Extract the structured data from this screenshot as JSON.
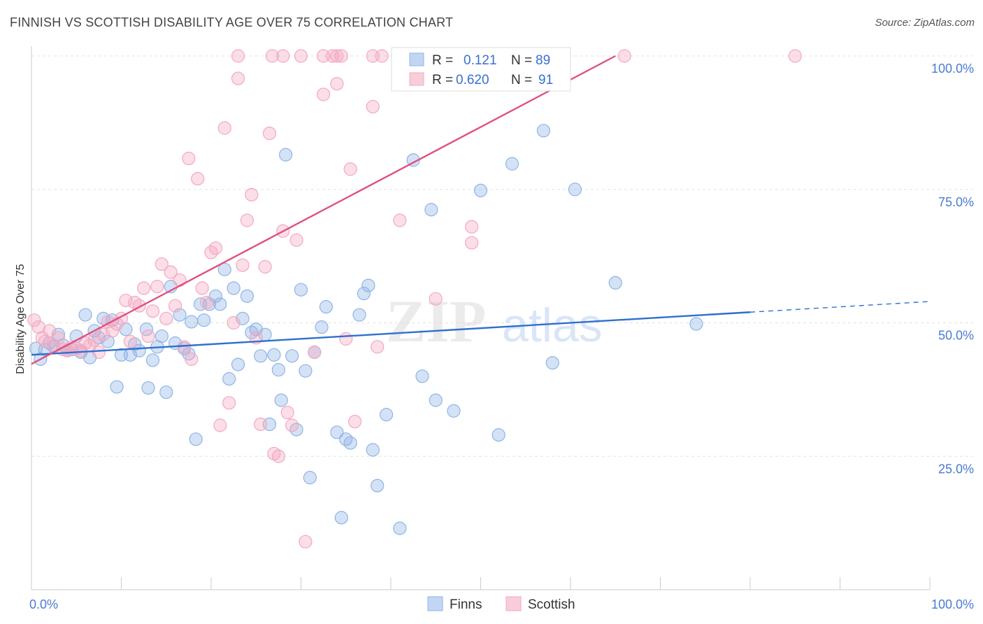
{
  "title": "FINNISH VS SCOTTISH DISABILITY AGE OVER 75 CORRELATION CHART",
  "source": "Source: ZipAtlas.com",
  "watermark": {
    "zip": "ZIP",
    "atlas": "atlas"
  },
  "chart_data": {
    "type": "scatter",
    "title": "FINNISH VS SCOTTISH DISABILITY AGE OVER 75 CORRELATION CHART",
    "xlabel": "",
    "ylabel": "Disability Age Over 75",
    "xlim": [
      0,
      100
    ],
    "ylim": [
      0,
      100
    ],
    "x_tick_labels": [
      "0.0%",
      "100.0%"
    ],
    "y_ticks": [
      25,
      50,
      75,
      100
    ],
    "y_tick_labels": [
      "25.0%",
      "50.0%",
      "75.0%",
      "100.0%"
    ],
    "grid": true,
    "legend_position": "top-center",
    "series": [
      {
        "name": "Finns",
        "color": "#8fb4e8",
        "line_color": "#2f6fcf",
        "R": "0.121",
        "N": "89",
        "trend": {
          "x0": 0,
          "y0": 44.0,
          "x1": 80,
          "y1": 52.0,
          "dash_to_x": 100,
          "dash_to_y": 54.0
        },
        "points": [
          [
            0.5,
            45.2
          ],
          [
            1.0,
            43.2
          ],
          [
            1.5,
            45.0
          ],
          [
            2.0,
            46.2
          ],
          [
            2.5,
            45.5
          ],
          [
            3.0,
            47.8
          ],
          [
            3.5,
            45.8
          ],
          [
            4.0,
            44.8
          ],
          [
            4.5,
            45.0
          ],
          [
            5.0,
            47.5
          ],
          [
            5.5,
            44.5
          ],
          [
            6.0,
            51.5
          ],
          [
            6.5,
            43.5
          ],
          [
            7.0,
            48.5
          ],
          [
            7.5,
            47.2
          ],
          [
            8.0,
            50.8
          ],
          [
            8.5,
            46.5
          ],
          [
            9.0,
            50.5
          ],
          [
            9.5,
            38.0
          ],
          [
            10.0,
            44.0
          ],
          [
            10.5,
            48.8
          ],
          [
            11.0,
            44.0
          ],
          [
            11.5,
            46.0
          ],
          [
            12.0,
            44.8
          ],
          [
            12.8,
            48.8
          ],
          [
            13.0,
            37.8
          ],
          [
            13.5,
            43.0
          ],
          [
            14.0,
            45.5
          ],
          [
            14.5,
            47.5
          ],
          [
            15.0,
            37.0
          ],
          [
            15.5,
            56.8
          ],
          [
            16.0,
            46.2
          ],
          [
            16.5,
            51.5
          ],
          [
            17.0,
            45.2
          ],
          [
            17.5,
            44.2
          ],
          [
            17.8,
            50.2
          ],
          [
            18.3,
            28.2
          ],
          [
            18.8,
            53.5
          ],
          [
            19.2,
            50.5
          ],
          [
            19.8,
            53.5
          ],
          [
            20.5,
            55.0
          ],
          [
            21.0,
            53.5
          ],
          [
            21.5,
            60.0
          ],
          [
            22.0,
            39.5
          ],
          [
            22.5,
            56.5
          ],
          [
            23.0,
            42.2
          ],
          [
            23.5,
            50.8
          ],
          [
            24.0,
            55.0
          ],
          [
            24.5,
            48.2
          ],
          [
            25.0,
            48.8
          ],
          [
            25.5,
            43.8
          ],
          [
            26.0,
            47.8
          ],
          [
            26.5,
            31.0
          ],
          [
            27.0,
            44.0
          ],
          [
            27.5,
            41.2
          ],
          [
            27.8,
            35.5
          ],
          [
            28.3,
            81.5
          ],
          [
            29.0,
            43.8
          ],
          [
            29.5,
            30.0
          ],
          [
            30.0,
            56.2
          ],
          [
            30.5,
            41.0
          ],
          [
            31.0,
            21.0
          ],
          [
            31.5,
            44.5
          ],
          [
            32.3,
            49.2
          ],
          [
            32.8,
            53.0
          ],
          [
            34.0,
            29.5
          ],
          [
            34.5,
            13.5
          ],
          [
            35.0,
            28.2
          ],
          [
            35.5,
            27.5
          ],
          [
            36.5,
            51.5
          ],
          [
            37.0,
            55.5
          ],
          [
            37.5,
            57.0
          ],
          [
            38.0,
            26.2
          ],
          [
            38.5,
            19.5
          ],
          [
            39.5,
            32.8
          ],
          [
            41.0,
            11.5
          ],
          [
            42.5,
            80.5
          ],
          [
            43.5,
            40.0
          ],
          [
            44.5,
            71.2
          ],
          [
            45.0,
            35.5
          ],
          [
            47.0,
            33.5
          ],
          [
            50.0,
            74.8
          ],
          [
            52.0,
            29.0
          ],
          [
            53.5,
            79.8
          ],
          [
            57.0,
            86.0
          ],
          [
            58.0,
            42.5
          ],
          [
            60.5,
            75.0
          ],
          [
            65.0,
            57.5
          ],
          [
            74.0,
            49.8
          ]
        ]
      },
      {
        "name": "Scottish",
        "color": "#f4a8c0",
        "line_color": "#e0507f",
        "R": "0.620",
        "N": "91",
        "trend": {
          "x0": 0,
          "y0": 42.3,
          "x1": 65,
          "y1": 100.0
        },
        "points": [
          [
            0.3,
            50.5
          ],
          [
            0.8,
            49.2
          ],
          [
            1.2,
            47.2
          ],
          [
            1.5,
            46.5
          ],
          [
            2.0,
            48.5
          ],
          [
            2.5,
            45.8
          ],
          [
            3.0,
            47.2
          ],
          [
            3.5,
            45.0
          ],
          [
            4.0,
            44.8
          ],
          [
            4.5,
            45.5
          ],
          [
            5.0,
            45.2
          ],
          [
            5.5,
            44.8
          ],
          [
            6.0,
            46.2
          ],
          [
            6.5,
            45.8
          ],
          [
            7.0,
            46.8
          ],
          [
            7.5,
            44.5
          ],
          [
            8.0,
            47.8
          ],
          [
            8.5,
            50.2
          ],
          [
            9.0,
            48.5
          ],
          [
            9.5,
            49.8
          ],
          [
            10.0,
            50.8
          ],
          [
            10.5,
            54.2
          ],
          [
            11.0,
            46.5
          ],
          [
            11.5,
            53.8
          ],
          [
            12.0,
            53.2
          ],
          [
            12.5,
            56.5
          ],
          [
            13.0,
            47.5
          ],
          [
            13.5,
            52.2
          ],
          [
            14.0,
            56.8
          ],
          [
            14.5,
            61.0
          ],
          [
            15.0,
            50.8
          ],
          [
            15.5,
            59.5
          ],
          [
            16.0,
            53.2
          ],
          [
            16.5,
            58.0
          ],
          [
            17.0,
            45.5
          ],
          [
            17.5,
            80.8
          ],
          [
            17.8,
            43.2
          ],
          [
            18.5,
            77.0
          ],
          [
            19.0,
            56.5
          ],
          [
            19.5,
            53.8
          ],
          [
            20.0,
            63.2
          ],
          [
            20.5,
            64.0
          ],
          [
            21.0,
            30.8
          ],
          [
            21.5,
            86.5
          ],
          [
            22.0,
            35.0
          ],
          [
            22.5,
            50.0
          ],
          [
            23.0,
            95.8
          ],
          [
            23.5,
            60.8
          ],
          [
            24.0,
            69.2
          ],
          [
            24.5,
            74.0
          ],
          [
            25.0,
            47.2
          ],
          [
            25.5,
            31.0
          ],
          [
            26.0,
            60.5
          ],
          [
            26.5,
            85.5
          ],
          [
            27.0,
            25.5
          ],
          [
            27.5,
            25.0
          ],
          [
            28.0,
            67.2
          ],
          [
            28.5,
            33.2
          ],
          [
            29.0,
            30.8
          ],
          [
            29.5,
            65.5
          ],
          [
            30.5,
            9.0
          ],
          [
            31.5,
            44.5
          ],
          [
            32.5,
            92.8
          ],
          [
            34.0,
            94.8
          ],
          [
            35.0,
            47.0
          ],
          [
            35.5,
            78.8
          ],
          [
            36.0,
            31.5
          ],
          [
            38.0,
            90.5
          ],
          [
            38.5,
            45.5
          ],
          [
            41.0,
            69.2
          ],
          [
            45.0,
            54.5
          ],
          [
            49.0,
            65.0
          ],
          [
            49.0,
            68.0
          ],
          [
            26.8,
            100.0
          ],
          [
            28.0,
            100.0
          ],
          [
            30.0,
            100.0
          ],
          [
            32.5,
            100.0
          ],
          [
            33.5,
            100.0
          ],
          [
            34.0,
            100.0
          ],
          [
            38.0,
            100.0
          ],
          [
            39.0,
            100.0
          ],
          [
            42.0,
            100.0
          ],
          [
            46.0,
            100.0
          ],
          [
            50.0,
            100.0
          ],
          [
            54.0,
            100.0
          ],
          [
            58.0,
            100.0
          ],
          [
            66.0,
            100.0
          ],
          [
            85.0,
            100.0
          ],
          [
            34.5,
            100.0
          ],
          [
            47.0,
            100.0
          ],
          [
            23.0,
            100.0
          ]
        ]
      }
    ]
  },
  "legend": {
    "rows": [
      {
        "r_label": "R =",
        "r_value": "0.121",
        "n_label": "N =",
        "n_value": "89"
      },
      {
        "r_label": "R =",
        "r_value": "0.620",
        "n_label": "N =",
        "n_value": "91"
      }
    ],
    "bottom": [
      "Finns",
      "Scottish"
    ]
  }
}
